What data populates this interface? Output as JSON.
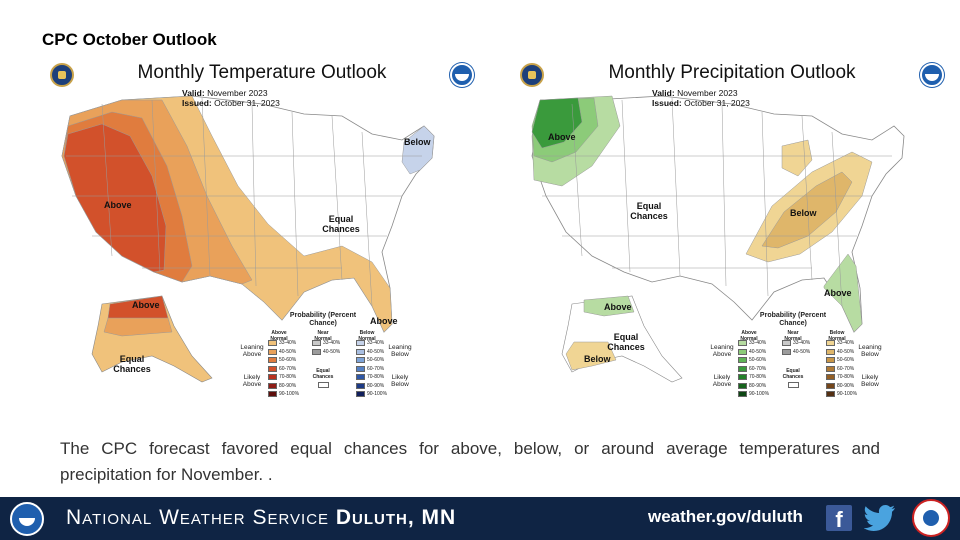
{
  "slide": {
    "title": "CPC October Outlook",
    "caption": "The CPC forecast favored equal chances for above, below, or around average temperatures and precipitation for November. ."
  },
  "temperature_map": {
    "title": "Monthly Temperature Outlook",
    "valid_label": "Valid:",
    "valid_value": "November 2023",
    "issued_label": "Issued:",
    "issued_value": "October 31, 2023",
    "labels": {
      "above_west": "Above",
      "below_ne": "Below",
      "equal_chances": "Equal Chances",
      "above_florida": "Above",
      "above_alaska": "Above",
      "equal_alaska": "Equal Chances"
    },
    "legend": {
      "title": "Probability (Percent Chance)",
      "head_above": "Above Normal",
      "head_near": "Near Normal",
      "head_below": "Below Normal",
      "leaning_above": "Leaning Above",
      "leaning_below": "Leaning Below",
      "likely_above": "Likely Above",
      "likely_below": "Likely Below",
      "equal_chances": "Equal Chances",
      "above_ranges": [
        "33-40%",
        "40-50%",
        "50-60%",
        "60-70%",
        "70-80%",
        "80-90%",
        "90-100%"
      ],
      "near_ranges": [
        "33-40%",
        "40-50%"
      ],
      "below_ranges": [
        "33-40%",
        "40-50%",
        "50-60%",
        "60-70%",
        "70-80%",
        "80-90%",
        "90-100%"
      ],
      "above_colors": [
        "#f0c27b",
        "#e9a15a",
        "#e07c3e",
        "#d2512b",
        "#b9321f",
        "#8f1d17",
        "#5e0f0c"
      ],
      "near_colors": [
        "#c9c9c9",
        "#9c9c9c"
      ],
      "below_colors": [
        "#c6d3ea",
        "#a9bfe2",
        "#7ea4d8",
        "#5480c4",
        "#2f57a6",
        "#1d3a85",
        "#111f5c"
      ]
    }
  },
  "precipitation_map": {
    "title": "Monthly Precipitation Outlook",
    "valid_label": "Valid:",
    "valid_value": "November 2023",
    "issued_label": "Issued:",
    "issued_value": "October 31, 2023",
    "labels": {
      "above_nw": "Above",
      "equal_chances": "Equal Chances",
      "below_ohio": "Below",
      "above_se": "Above",
      "above_alaska": "Above",
      "equal_alaska": "Equal Chances",
      "below_alaska": "Below"
    },
    "legend": {
      "title": "Probability (Percent Chance)",
      "head_above": "Above Normal",
      "head_near": "Near Normal",
      "head_below": "Below Normal",
      "leaning_above": "Leaning Above",
      "leaning_below": "Leaning Below",
      "likely_above": "Likely Above",
      "likely_below": "Likely Below",
      "equal_chances": "Equal Chances",
      "above_ranges": [
        "33-40%",
        "40-50%",
        "50-60%",
        "60-70%",
        "70-80%",
        "80-90%",
        "90-100%"
      ],
      "near_ranges": [
        "33-40%",
        "40-50%"
      ],
      "below_ranges": [
        "33-40%",
        "40-50%",
        "50-60%",
        "60-70%",
        "70-80%",
        "80-90%",
        "90-100%"
      ],
      "above_colors": [
        "#b7dca2",
        "#8ccb79",
        "#5fb456",
        "#3a9a3c",
        "#23802a",
        "#17641d",
        "#0d4613"
      ],
      "near_colors": [
        "#c9c9c9",
        "#9c9c9c"
      ],
      "below_colors": [
        "#f0d594",
        "#dfb66a",
        "#c99748",
        "#b07a35",
        "#935f26",
        "#74461b",
        "#542f12"
      ]
    }
  },
  "footer": {
    "org_prefix": "National Weather Service",
    "office": "Duluth, MN",
    "url": "weather.gov/duluth",
    "facebook_glyph": "f"
  },
  "colors": {
    "footer_bg": "#0f2444",
    "temp_above_light": "#f0c27b",
    "temp_above_mid": "#e9a15a",
    "temp_above_dark": "#e07c3e",
    "temp_above_core": "#d2512b",
    "temp_below_light": "#c6d3ea",
    "prcp_above_light": "#b7dca2",
    "prcp_above_mid": "#8ccb79",
    "prcp_above_dark": "#3a9a3c",
    "prcp_below_light": "#f0d594",
    "prcp_below_mid": "#dfb66a"
  }
}
